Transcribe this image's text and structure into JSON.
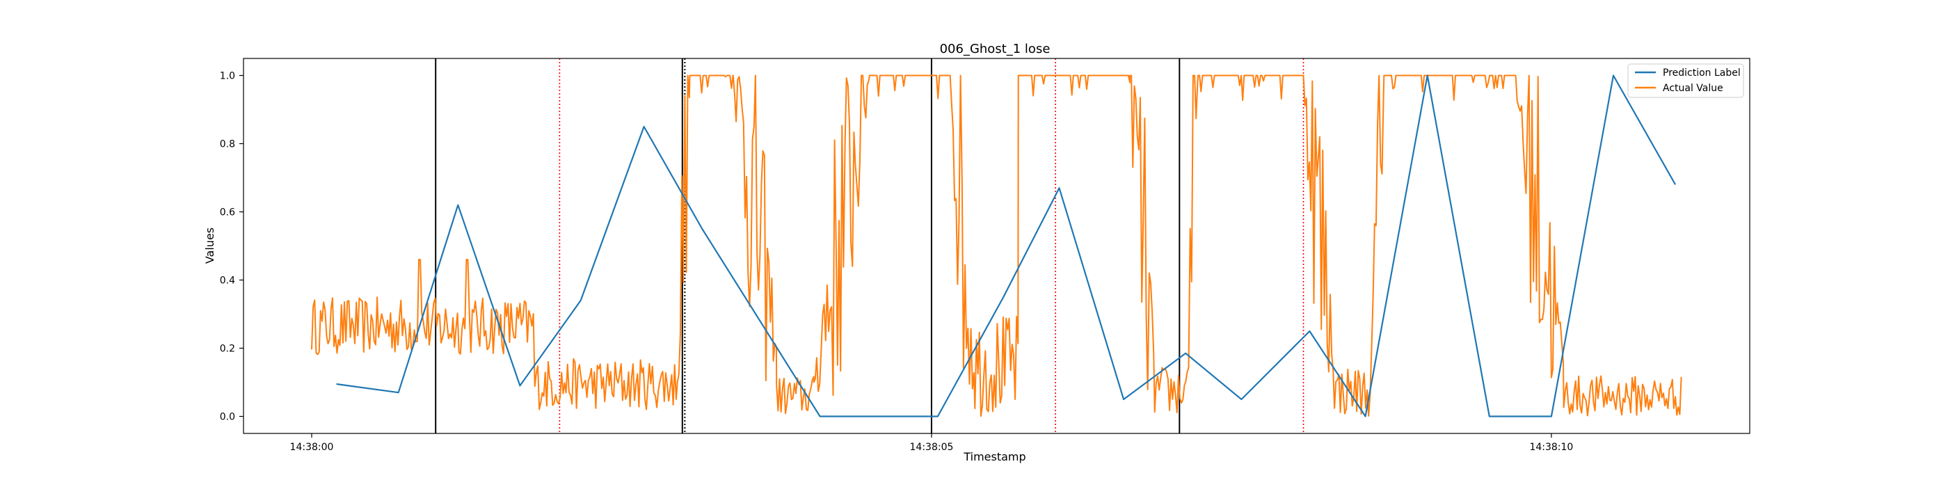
{
  "chart_data": {
    "type": "line",
    "title": "006_Ghost_1 lose",
    "xlabel": "Timestamp",
    "ylabel": "Values",
    "xlim": [
      -0.55,
      11.6
    ],
    "ylim": [
      -0.05,
      1.05
    ],
    "x_ticks": [
      {
        "value": 0,
        "label": "14:38:00"
      },
      {
        "value": 5,
        "label": "14:38:05"
      },
      {
        "value": 10,
        "label": "14:38:10"
      }
    ],
    "y_ticks": [
      {
        "value": 0.0,
        "label": "0.0"
      },
      {
        "value": 0.2,
        "label": "0.2"
      },
      {
        "value": 0.4,
        "label": "0.4"
      },
      {
        "value": 0.6,
        "label": "0.6"
      },
      {
        "value": 0.8,
        "label": "0.8"
      },
      {
        "value": 1.0,
        "label": "1.0"
      }
    ],
    "legend_position": "top-right",
    "grid": false,
    "series": [
      {
        "name": "Prediction Label",
        "color": "#1f77b4",
        "x": [
          0.2,
          0.7,
          1.18,
          1.68,
          2.17,
          2.68,
          3.15,
          4.1,
          5.05,
          5.58,
          6.03,
          6.55,
          7.05,
          7.5,
          8.05,
          8.5,
          9.0,
          9.5,
          10.0,
          10.5,
          11.0
        ],
        "y": [
          0.095,
          0.07,
          0.62,
          0.09,
          0.34,
          0.85,
          0.55,
          0.0,
          0.0,
          0.35,
          0.67,
          0.05,
          0.185,
          0.05,
          0.25,
          0.0,
          1.0,
          0.0,
          0.0,
          1.0,
          0.68
        ]
      },
      {
        "name": "Actual Value",
        "color": "#ff7f0e",
        "segments": [
          {
            "start": 0.0,
            "end": 1.8,
            "kind": "noise",
            "low": 0.18,
            "high": 0.35,
            "spikes": [
              [
                0.87,
                0.46
              ],
              [
                1.25,
                0.46
              ]
            ]
          },
          {
            "start": 1.8,
            "end": 2.95,
            "kind": "noise",
            "low": 0.02,
            "high": 0.17
          },
          {
            "start": 2.95,
            "end": 3.05,
            "kind": "rise",
            "from": 0.1,
            "to": 1.0
          },
          {
            "start": 3.05,
            "end": 3.4,
            "kind": "high"
          },
          {
            "start": 3.4,
            "end": 3.75,
            "kind": "fall",
            "from": 1.0,
            "to": 0.2
          },
          {
            "start": 3.75,
            "end": 4.05,
            "kind": "noise",
            "low": 0.0,
            "high": 0.12
          },
          {
            "start": 4.05,
            "end": 4.5,
            "kind": "rise",
            "from": 0.1,
            "to": 1.0
          },
          {
            "start": 4.5,
            "end": 5.15,
            "kind": "high"
          },
          {
            "start": 5.15,
            "end": 5.35,
            "kind": "fall",
            "from": 1.0,
            "to": 0.1
          },
          {
            "start": 5.35,
            "end": 5.7,
            "kind": "noise",
            "low": 0.0,
            "high": 0.3
          },
          {
            "start": 5.7,
            "end": 6.6,
            "kind": "high"
          },
          {
            "start": 6.6,
            "end": 6.8,
            "kind": "fall",
            "from": 1.0,
            "to": 0.1
          },
          {
            "start": 6.8,
            "end": 7.05,
            "kind": "noise",
            "low": 0.0,
            "high": 0.15
          },
          {
            "start": 7.05,
            "end": 7.15,
            "kind": "rise",
            "from": 0.1,
            "to": 1.0
          },
          {
            "start": 7.15,
            "end": 8.0,
            "kind": "high"
          },
          {
            "start": 8.0,
            "end": 8.25,
            "kind": "fall",
            "from": 1.0,
            "to": 0.15
          },
          {
            "start": 8.25,
            "end": 8.55,
            "kind": "noise",
            "low": 0.0,
            "high": 0.15
          },
          {
            "start": 8.55,
            "end": 8.65,
            "kind": "rise",
            "from": 0.2,
            "to": 1.0
          },
          {
            "start": 8.65,
            "end": 9.7,
            "kind": "high"
          },
          {
            "start": 9.7,
            "end": 10.1,
            "kind": "fall",
            "from": 1.0,
            "to": 0.15
          },
          {
            "start": 10.1,
            "end": 11.05,
            "kind": "noise",
            "low": 0.0,
            "high": 0.12
          }
        ]
      }
    ],
    "vertical_lines": [
      {
        "x": 1.0,
        "color": "#000000",
        "style": "solid"
      },
      {
        "x": 2.0,
        "color": "#ff0000",
        "style": "dotted"
      },
      {
        "x": 2.99,
        "color": "#000000",
        "style": "solid"
      },
      {
        "x": 3.01,
        "color": "#000000",
        "style": "dotted"
      },
      {
        "x": 5.0,
        "color": "#000000",
        "style": "solid"
      },
      {
        "x": 6.0,
        "color": "#ff0000",
        "style": "dotted"
      },
      {
        "x": 7.0,
        "color": "#000000",
        "style": "solid"
      },
      {
        "x": 8.0,
        "color": "#ff0000",
        "style": "dotted"
      }
    ]
  }
}
